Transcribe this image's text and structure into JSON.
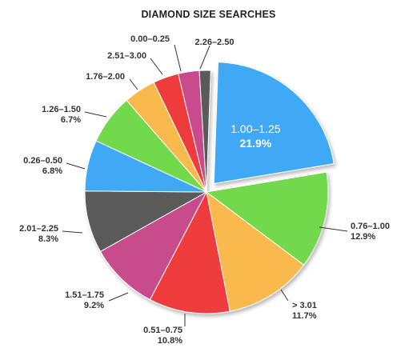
{
  "chart_data": {
    "type": "pie",
    "title": "DIAMOND SIZE SEARCHES",
    "exploded_slice": "1.00–1.25",
    "slices": [
      {
        "label": "1.00–1.25",
        "value": 21.9,
        "value_label": "21.9%",
        "color": "#3FA9F5"
      },
      {
        "label": "0.76–1.00",
        "value": 12.9,
        "value_label": "12.9%",
        "color": "#71D94B"
      },
      {
        "label": "> 3.01",
        "value": 11.7,
        "value_label": "11.7%",
        "color": "#F9B94E"
      },
      {
        "label": "0.51–0.75",
        "value": 10.8,
        "value_label": "10.8%",
        "color": "#EE3B3B"
      },
      {
        "label": "1.51–1.75",
        "value": 9.2,
        "value_label": "9.2%",
        "color": "#C84B8B"
      },
      {
        "label": "2.01–2.25",
        "value": 8.3,
        "value_label": "8.3%",
        "color": "#5A5A5A"
      },
      {
        "label": "0.26–0.50",
        "value": 6.8,
        "value_label": "6.8%",
        "color": "#3FA9F5"
      },
      {
        "label": "1.26–1.50",
        "value": 6.7,
        "value_label": "6.7%",
        "color": "#71D94B"
      },
      {
        "label": "1.76–2.00",
        "value": 4.3,
        "value_label": "",
        "color": "#F9B94E"
      },
      {
        "label": "2.51–3.00",
        "value": 3.4,
        "value_label": "",
        "color": "#EE3B3B"
      },
      {
        "label": "0.00–0.25",
        "value": 2.8,
        "value_label": "",
        "color": "#C84B8B"
      },
      {
        "label": "2.26–2.50",
        "value": 1.5,
        "value_label": "",
        "color": "#5A5A5A"
      }
    ]
  }
}
